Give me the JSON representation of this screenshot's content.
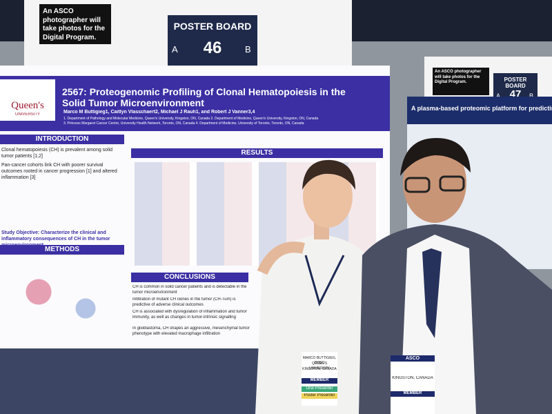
{
  "signs": [
    {
      "notice": "An ASCO photographer will take photos for the Digital Program.",
      "board_label": "POSTER BOARD",
      "side_a": "A",
      "number": "46",
      "side_b": "B"
    },
    {
      "notice": "An ASCO photographer will take photos for the Digital Program.",
      "board_label": "POSTER BOARD",
      "side_a": "A",
      "number": "47",
      "side_b": "B"
    }
  ],
  "poster": {
    "title": "2567: Proteogenomic Profiling of Clonal Hematopoiesis in the Solid Tumor Microenvironment",
    "authors": "Marco M Buttigieg1, Caitlyn Vlasschaert2, Michael J Rauh1, and Robert J Vanner3,4",
    "affiliations": "1. Department of Pathology and Molecular Medicine, Queen's University, Kingston, ON, Canada 2. Department of Medicine, Queen's University, Kingston, ON, Canada",
    "affiliations_2": "3. Princess Margaret Cancer Centre, University Health Network, Toronto, ON, Canada 4. Department of Medicine, University of Toronto, Toronto, ON, Canada",
    "logo": "Queen's",
    "logo_sub": "UNIVERSITY",
    "introduction": "INTRODUCTION",
    "intro_points": [
      "Clonal hematopoiesis (CH) is prevalent among solid tumor patients [1,2]",
      "Pan-cancer cohorts link CH with poorer survival outcomes rooted in cancer progression [1] and altered inflammation [3]"
    ],
    "study_objective": "Study Objective: Characterize the clinical and inflammatory consequences of CH in the tumor microenvironment",
    "methods": "METHODS",
    "results": "RESULTS",
    "conclusions": "CONCLUSIONS",
    "conclusion_points": [
      "CH is common in solid cancer patients and is detectable in the tumor microenvironment",
      "Infiltration of mutant CH clones in the tumor (CH-Tum) is predictive of adverse clinical outcomes",
      "CH is associated with dysregulation of inflammation and tumor immunity, as well as changes in tumor-intrinsic signalling",
      "In glioblastoma, CH shapes an aggressive, mesenchymal tumor phenotype with elevated macrophage infiltration"
    ]
  },
  "neighbor_poster": {
    "title": "A plasma-based proteomic platform for predicting clinical benefit from immune chec"
  },
  "badges": [
    {
      "name": "MARCO BUTTIGIEG, BHSC",
      "org": "QUEEN'S UNIVERSITY",
      "place": "KINGSTON, CANADA",
      "type": "MEMBER",
      "tags": [
        "Oral Presenter",
        "Poster Presenter"
      ]
    },
    {
      "brand": "ASCO",
      "place": "KINGSTON, CANADA",
      "type": "MEMBER"
    }
  ]
}
